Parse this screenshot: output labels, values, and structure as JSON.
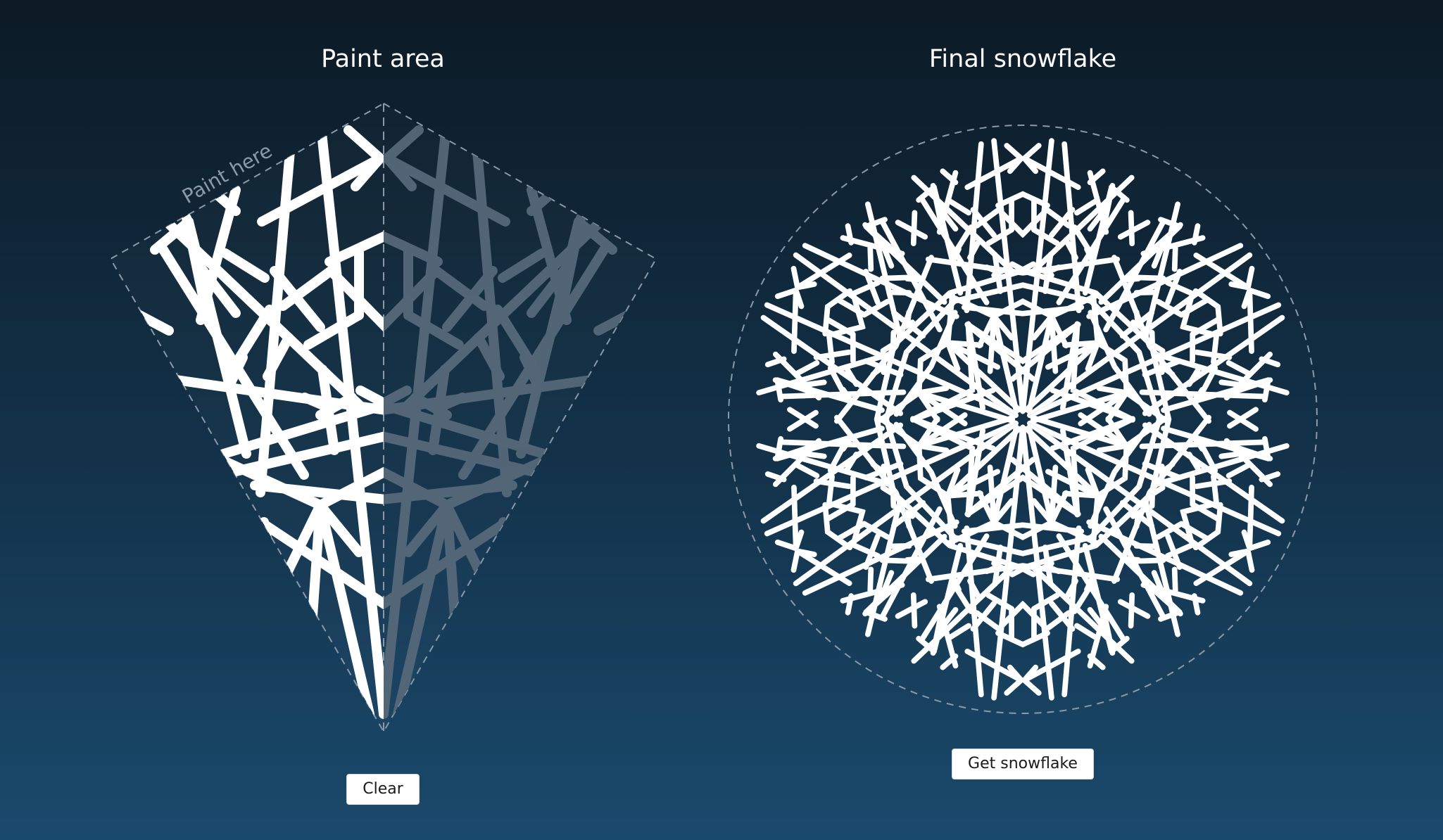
{
  "paint_panel": {
    "title": "Paint area",
    "hint": "Paint here",
    "clear_label": "Clear"
  },
  "result_panel": {
    "title": "Final snowflake",
    "get_label": "Get snowflake"
  },
  "colors": {
    "stroke": "#ffffff",
    "mirror": "#56697a",
    "guide": "#8a9aa8"
  }
}
